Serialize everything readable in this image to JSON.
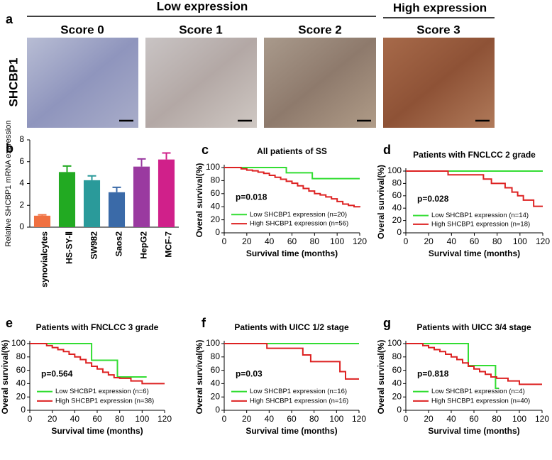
{
  "panel_a": {
    "label": "a",
    "groups": [
      {
        "title": "Low expression"
      },
      {
        "title": "High expression"
      }
    ],
    "scores": [
      "Score 0",
      "Score 1",
      "Score 2",
      "Score 3"
    ],
    "row_label": "SHCBP1"
  },
  "chart_data": [
    {
      "type": "bar",
      "label": "b",
      "ylabel": "Relative SHCBP1 mRNA expression",
      "categories": [
        "synovialcytes",
        "HS-SY-Ⅱ",
        "SW982",
        "Saos2",
        "HepG2",
        "MCF-7"
      ],
      "values": [
        1.05,
        5.05,
        4.3,
        3.2,
        5.55,
        6.2
      ],
      "errors": [
        0.08,
        0.55,
        0.4,
        0.45,
        0.7,
        0.6
      ],
      "colors": [
        "#f07040",
        "#22aa22",
        "#2a9a9a",
        "#3a6aa8",
        "#9a3aa0",
        "#d0208a"
      ],
      "ylim": [
        0,
        8
      ],
      "yticks": [
        0,
        2,
        4,
        6,
        8
      ]
    },
    {
      "type": "line",
      "step": true,
      "label": "c",
      "title": "All patients of SS",
      "annotation": "p=0.018",
      "xlabel": "Survival time (months)",
      "ylabel": "Overal survival(%)",
      "legend": "lower right",
      "xlim": [
        0,
        120
      ],
      "xticks": [
        0,
        20,
        40,
        60,
        80,
        100,
        120
      ],
      "ylim": [
        0,
        100
      ],
      "yticks": [
        0,
        20,
        40,
        60,
        80,
        100
      ],
      "series": [
        {
          "name": "Low SHCBP1 expression (n=20)",
          "color": "#33dd33",
          "x": [
            0,
            55,
            78,
            120
          ],
          "values": [
            100,
            92,
            83,
            83
          ]
        },
        {
          "name": "High SHCBP1 expression (n=56)",
          "color": "#dd2222",
          "x": [
            0,
            15,
            20,
            25,
            30,
            35,
            40,
            45,
            50,
            55,
            60,
            65,
            70,
            75,
            80,
            85,
            90,
            95,
            100,
            105,
            110,
            115,
            120
          ],
          "values": [
            100,
            98,
            96,
            95,
            93,
            91,
            88,
            85,
            82,
            79,
            76,
            72,
            68,
            64,
            60,
            58,
            55,
            52,
            48,
            44,
            42,
            40,
            39
          ]
        }
      ]
    },
    {
      "type": "line",
      "step": true,
      "label": "d",
      "title": "Patients with FNCLCC 2 grade",
      "annotation": "p=0.028",
      "xlabel": "Survival time (months)",
      "ylabel": "Overal survival(%)",
      "legend": "lower right",
      "xlim": [
        0,
        120
      ],
      "xticks": [
        0,
        20,
        40,
        60,
        80,
        100,
        120
      ],
      "ylim": [
        0,
        100
      ],
      "yticks": [
        0,
        20,
        40,
        60,
        80,
        100
      ],
      "series": [
        {
          "name": "Low SHCBP1 expression (n=14)",
          "color": "#33dd33",
          "x": [
            0,
            120
          ],
          "values": [
            100,
            100
          ]
        },
        {
          "name": "High SHCBP1 expression (n=18)",
          "color": "#dd2222",
          "x": [
            0,
            37,
            68,
            75,
            87,
            93,
            98,
            103,
            112,
            120
          ],
          "values": [
            100,
            94,
            87,
            80,
            73,
            66,
            60,
            53,
            43,
            43
          ]
        }
      ]
    },
    {
      "type": "line",
      "step": true,
      "label": "e",
      "title": "Patients with FNCLCC 3 grade",
      "annotation": "p=0.564",
      "xlabel": "Survival time (months)",
      "ylabel": "Overal survival(%)",
      "legend": "lower right",
      "xlim": [
        0,
        120
      ],
      "xticks": [
        0,
        20,
        40,
        60,
        80,
        100,
        120
      ],
      "ylim": [
        0,
        100
      ],
      "yticks": [
        0,
        20,
        40,
        60,
        80,
        100
      ],
      "series": [
        {
          "name": "Low SHCBP1 expression (n=6)",
          "color": "#33dd33",
          "x": [
            0,
            55,
            78,
            104
          ],
          "values": [
            100,
            75,
            50,
            50
          ]
        },
        {
          "name": "High SHCBP1 expression (n=38)",
          "color": "#dd2222",
          "x": [
            0,
            15,
            20,
            25,
            30,
            35,
            40,
            45,
            50,
            55,
            60,
            65,
            70,
            75,
            80,
            90,
            100,
            120
          ],
          "values": [
            100,
            97,
            94,
            91,
            88,
            84,
            80,
            76,
            71,
            66,
            62,
            57,
            53,
            49,
            48,
            44,
            40,
            40
          ]
        }
      ]
    },
    {
      "type": "line",
      "step": true,
      "label": "f",
      "title": "Patients with UICC 1/2 stage",
      "annotation": "p=0.03",
      "xlabel": "Survival time (months)",
      "ylabel": "Overal survival(%)",
      "legend": "lower right",
      "xlim": [
        0,
        120
      ],
      "xticks": [
        0,
        20,
        40,
        60,
        80,
        100,
        120
      ],
      "ylim": [
        0,
        100
      ],
      "yticks": [
        0,
        20,
        40,
        60,
        80,
        100
      ],
      "series": [
        {
          "name": "Low SHCBP1 expression (n=16)",
          "color": "#33dd33",
          "x": [
            0,
            120
          ],
          "values": [
            100,
            100
          ]
        },
        {
          "name": "High SHCBP1 expression (n=16)",
          "color": "#dd2222",
          "x": [
            0,
            38,
            70,
            77,
            103,
            108,
            120
          ],
          "values": [
            100,
            93,
            83,
            73,
            58,
            47,
            47
          ]
        }
      ]
    },
    {
      "type": "line",
      "step": true,
      "label": "g",
      "title": "Patients with UICC 3/4 stage",
      "annotation": "p=0.818",
      "xlabel": "Survival time (months)",
      "ylabel": "Overal survival(%)",
      "legend": "lower right",
      "xlim": [
        0,
        120
      ],
      "xticks": [
        0,
        20,
        40,
        60,
        80,
        100,
        120
      ],
      "ylim": [
        0,
        100
      ],
      "yticks": [
        0,
        20,
        40,
        60,
        80,
        100
      ],
      "series": [
        {
          "name": "Low SHCBP1 expression (n=4)",
          "color": "#33dd33",
          "x": [
            0,
            55,
            79,
            82
          ],
          "values": [
            100,
            67,
            33,
            33
          ]
        },
        {
          "name": "High SHCBP1 expression (n=40)",
          "color": "#dd2222",
          "x": [
            0,
            15,
            20,
            25,
            30,
            35,
            40,
            45,
            50,
            55,
            60,
            65,
            70,
            75,
            80,
            90,
            100,
            120
          ],
          "values": [
            100,
            97,
            94,
            91,
            88,
            84,
            80,
            76,
            71,
            66,
            62,
            58,
            54,
            50,
            48,
            44,
            39,
            39
          ]
        }
      ]
    }
  ]
}
